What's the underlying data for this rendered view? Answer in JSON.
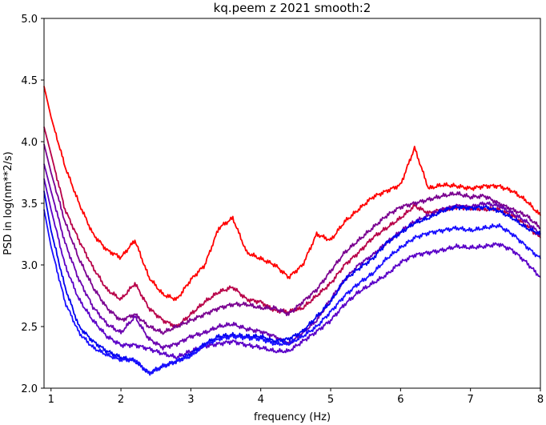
{
  "chart_data": {
    "type": "line",
    "title": "kq.peem z 2021 smooth:2",
    "xlabel": "frequency (Hz)",
    "ylabel": "PSD in log(nm**2/s)",
    "xlim": [
      0.9,
      8.0
    ],
    "ylim": [
      2.0,
      5.0
    ],
    "xticks": [
      1,
      2,
      3,
      4,
      5,
      6,
      7,
      8
    ],
    "yticks": [
      2.0,
      2.5,
      3.0,
      3.5,
      4.0,
      4.5,
      5.0
    ],
    "x": [
      0.9,
      1.0,
      1.2,
      1.4,
      1.6,
      1.8,
      2.0,
      2.2,
      2.4,
      2.6,
      2.8,
      3.0,
      3.2,
      3.4,
      3.6,
      3.8,
      4.0,
      4.2,
      4.4,
      4.6,
      4.8,
      5.0,
      5.2,
      5.4,
      5.6,
      5.8,
      6.0,
      6.2,
      6.4,
      6.6,
      6.8,
      7.0,
      7.2,
      7.4,
      7.6,
      7.8,
      8.0
    ],
    "series": [
      {
        "color": "#ff0000",
        "values": [
          4.45,
          4.2,
          3.8,
          3.5,
          3.25,
          3.12,
          3.06,
          3.2,
          2.9,
          2.76,
          2.72,
          2.88,
          3.0,
          3.3,
          3.38,
          3.1,
          3.05,
          3.0,
          2.9,
          3.0,
          3.25,
          3.2,
          3.35,
          3.45,
          3.55,
          3.6,
          3.65,
          3.95,
          3.62,
          3.65,
          3.64,
          3.62,
          3.64,
          3.64,
          3.6,
          3.52,
          3.4
        ]
      },
      {
        "color": "#b80048",
        "values": [
          4.12,
          3.9,
          3.45,
          3.2,
          2.98,
          2.8,
          2.72,
          2.85,
          2.65,
          2.55,
          2.5,
          2.6,
          2.7,
          2.78,
          2.82,
          2.72,
          2.7,
          2.63,
          2.62,
          2.65,
          2.75,
          2.85,
          3.0,
          3.1,
          3.22,
          3.3,
          3.38,
          3.48,
          3.42,
          3.45,
          3.47,
          3.46,
          3.45,
          3.45,
          3.4,
          3.32,
          3.22
        ]
      },
      {
        "color": "#7a0090",
        "values": [
          3.98,
          3.75,
          3.35,
          3.05,
          2.82,
          2.65,
          2.55,
          2.6,
          2.5,
          2.45,
          2.5,
          2.55,
          2.6,
          2.65,
          2.68,
          2.68,
          2.65,
          2.65,
          2.6,
          2.7,
          2.8,
          2.95,
          3.1,
          3.2,
          3.3,
          3.4,
          3.47,
          3.5,
          3.53,
          3.56,
          3.58,
          3.55,
          3.56,
          3.5,
          3.45,
          3.4,
          3.3
        ]
      },
      {
        "color": "#6a00b0",
        "values": [
          3.82,
          3.6,
          3.18,
          2.88,
          2.66,
          2.52,
          2.45,
          2.58,
          2.4,
          2.33,
          2.36,
          2.42,
          2.45,
          2.5,
          2.52,
          2.48,
          2.46,
          2.42,
          2.36,
          2.45,
          2.55,
          2.72,
          2.88,
          3.0,
          3.08,
          3.18,
          3.27,
          3.35,
          3.4,
          3.45,
          3.48,
          3.47,
          3.5,
          3.48,
          3.42,
          3.35,
          3.25
        ]
      },
      {
        "color": "#5a00c8",
        "values": [
          3.7,
          3.45,
          3.0,
          2.72,
          2.55,
          2.42,
          2.35,
          2.35,
          2.32,
          2.28,
          2.25,
          2.3,
          2.34,
          2.36,
          2.38,
          2.35,
          2.33,
          2.3,
          2.3,
          2.38,
          2.46,
          2.55,
          2.68,
          2.78,
          2.85,
          2.92,
          3.02,
          3.08,
          3.1,
          3.12,
          3.15,
          3.14,
          3.15,
          3.17,
          3.12,
          3.02,
          2.9
        ]
      },
      {
        "color": "#0000ee",
        "values": [
          3.6,
          3.28,
          2.82,
          2.5,
          2.38,
          2.3,
          2.25,
          2.22,
          2.12,
          2.18,
          2.22,
          2.28,
          2.36,
          2.42,
          2.43,
          2.42,
          2.42,
          2.38,
          2.4,
          2.46,
          2.58,
          2.7,
          2.88,
          2.97,
          3.05,
          3.18,
          3.26,
          3.34,
          3.38,
          3.44,
          3.47,
          3.46,
          3.47,
          3.44,
          3.38,
          3.3,
          3.25
        ]
      },
      {
        "color": "#1a10ff",
        "values": [
          3.45,
          3.15,
          2.7,
          2.45,
          2.33,
          2.27,
          2.23,
          2.23,
          2.12,
          2.18,
          2.22,
          2.26,
          2.35,
          2.4,
          2.42,
          2.41,
          2.4,
          2.36,
          2.36,
          2.42,
          2.5,
          2.62,
          2.75,
          2.85,
          2.93,
          3.05,
          3.14,
          3.22,
          3.26,
          3.28,
          3.3,
          3.28,
          3.3,
          3.32,
          3.25,
          3.15,
          3.05
        ]
      }
    ]
  }
}
